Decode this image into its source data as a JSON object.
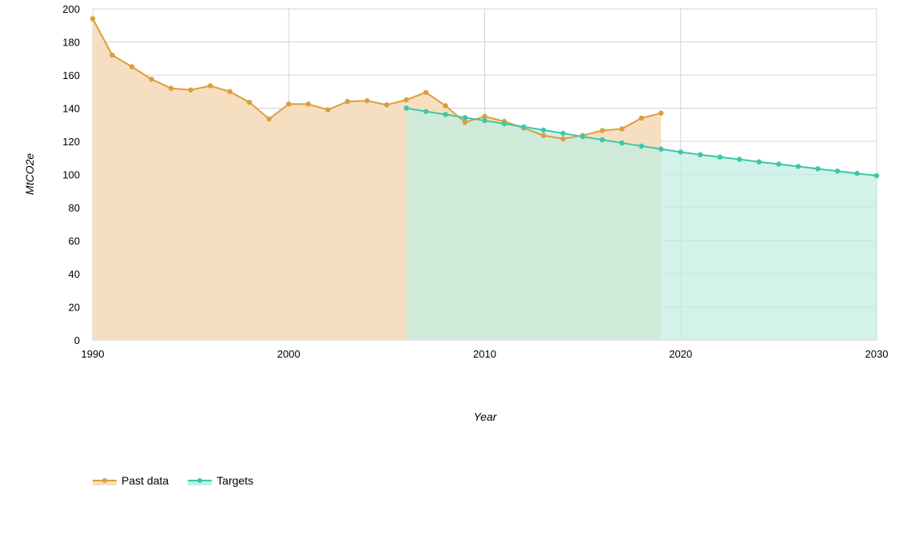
{
  "chart_data": {
    "type": "area",
    "xlabel": "Year",
    "ylabel": "MtCO2e",
    "xlim": [
      1990,
      2030
    ],
    "ylim": [
      0,
      200
    ],
    "x_ticks": [
      "1990",
      "2000",
      "2010",
      "2020",
      "2030"
    ],
    "y_ticks": [
      "0",
      "20",
      "40",
      "60",
      "80",
      "100",
      "120",
      "140",
      "160",
      "180",
      "200"
    ],
    "grid": true,
    "legend_position": "bottom-left",
    "series": [
      {
        "name": "Past data",
        "color": "#dc9e3c",
        "fill": "#f5dfc0",
        "points": [
          [
            1990,
            194
          ],
          [
            1991,
            172
          ],
          [
            1992,
            165
          ],
          [
            1993,
            157.5
          ],
          [
            1994,
            152
          ],
          [
            1995,
            151
          ],
          [
            1996,
            153.5
          ],
          [
            1997,
            150
          ],
          [
            1998,
            143.5
          ],
          [
            1999,
            133.5
          ],
          [
            2000,
            142.5
          ],
          [
            2001,
            142.5
          ],
          [
            2002,
            139
          ],
          [
            2003,
            144
          ],
          [
            2004,
            144.5
          ],
          [
            2005,
            142
          ],
          [
            2006,
            145
          ],
          [
            2007,
            149.5
          ],
          [
            2008,
            141.5
          ],
          [
            2009,
            131.5
          ],
          [
            2010,
            135
          ],
          [
            2011,
            132
          ],
          [
            2012,
            128
          ],
          [
            2013,
            123.5
          ],
          [
            2014,
            121.5
          ],
          [
            2015,
            123.5
          ],
          [
            2016,
            126.5
          ],
          [
            2017,
            127.5
          ],
          [
            2018,
            134
          ],
          [
            2019,
            137
          ]
        ]
      },
      {
        "name": "Targets",
        "color": "#3cc8a8",
        "fill": "#c3ede3",
        "points": [
          [
            2006,
            140
          ],
          [
            2007,
            138
          ],
          [
            2008,
            136.2
          ],
          [
            2009,
            134.3
          ],
          [
            2010,
            132.5
          ],
          [
            2011,
            130.6
          ],
          [
            2012,
            128.7
          ],
          [
            2013,
            126.8
          ],
          [
            2014,
            124.8
          ],
          [
            2015,
            122.8
          ],
          [
            2016,
            120.9
          ],
          [
            2017,
            119
          ],
          [
            2018,
            117.1
          ],
          [
            2019,
            115.3
          ],
          [
            2020,
            113.5
          ],
          [
            2021,
            111.9
          ],
          [
            2022,
            110.5
          ],
          [
            2023,
            109.1
          ],
          [
            2024,
            107.6
          ],
          [
            2025,
            106.2
          ],
          [
            2026,
            104.8
          ],
          [
            2027,
            103.4
          ],
          [
            2028,
            102
          ],
          [
            2029,
            100.6
          ],
          [
            2030,
            99.2
          ]
        ]
      }
    ]
  }
}
